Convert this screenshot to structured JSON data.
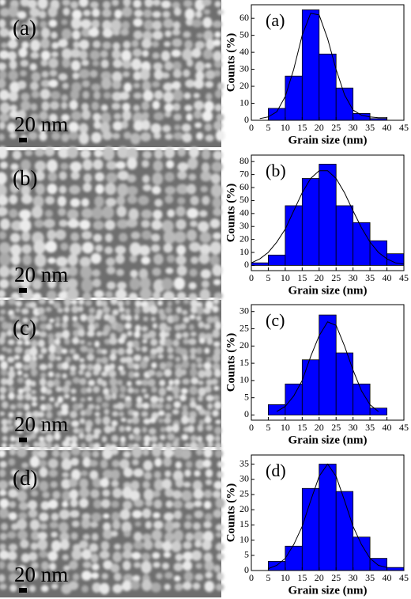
{
  "images": [
    {
      "label": "(a)",
      "scale": "20 nm"
    },
    {
      "label": "(b)",
      "scale": "20 nm"
    },
    {
      "label": "(c)",
      "scale": "20 nm"
    },
    {
      "label": "(d)",
      "scale": "20 nm"
    }
  ],
  "chart_data": [
    {
      "type": "histogram",
      "panel_label": "(a)",
      "x_label": "Grain size (nm)",
      "y_label": "Counts (%)",
      "color": "#0000ff",
      "bins": [
        5,
        10,
        15,
        20,
        25,
        30,
        35,
        40
      ],
      "counts": [
        7,
        26,
        65,
        39,
        19,
        4,
        1
      ],
      "fit": {
        "x": [
          2.5,
          5,
          7.5,
          10,
          12.5,
          15,
          17.5,
          20,
          22.5,
          25,
          27.5,
          30,
          32.5,
          35,
          37.5,
          40
        ],
        "values": [
          1,
          2,
          5,
          14,
          30,
          50,
          63,
          62,
          48,
          30,
          15,
          6,
          3,
          2,
          1.5,
          1.5
        ]
      },
      "xlim": [
        0,
        45
      ],
      "xticks": [
        0,
        5,
        10,
        15,
        20,
        25,
        30,
        35,
        40,
        45
      ],
      "ylim": [
        0,
        68
      ],
      "yticks": [
        0,
        10,
        20,
        30,
        40,
        50,
        60
      ]
    },
    {
      "type": "histogram",
      "panel_label": "(b)",
      "x_label": "Grain size (nm)",
      "y_label": "Counts (%)",
      "color": "#0000ff",
      "bins": [
        0,
        5,
        10,
        15,
        20,
        25,
        30,
        35,
        40,
        45
      ],
      "counts": [
        2,
        8,
        46,
        67,
        78,
        46,
        33,
        19,
        9
      ],
      "fit": {
        "x": [
          0,
          2.5,
          5,
          7.5,
          10,
          12.5,
          15,
          17.5,
          20,
          22.5,
          25,
          27.5,
          30,
          32.5,
          35,
          37.5,
          40,
          42.5,
          45
        ],
        "values": [
          2,
          5,
          10,
          18,
          28,
          42,
          56,
          67,
          73,
          73,
          67,
          56,
          42,
          29,
          18,
          10,
          5,
          2,
          1
        ]
      },
      "xlim": [
        0,
        45
      ],
      "xticks": [
        0,
        5,
        10,
        15,
        20,
        25,
        30,
        35,
        40,
        45
      ],
      "ylim": [
        -4,
        85
      ],
      "yticks": [
        0,
        10,
        20,
        30,
        40,
        50,
        60,
        70,
        80
      ]
    },
    {
      "type": "histogram",
      "panel_label": "(c)",
      "x_label": "Grain size (nm)",
      "y_label": "Counts (%)",
      "color": "#0000ff",
      "bins": [
        5,
        10,
        15,
        20,
        25,
        30,
        35,
        40
      ],
      "counts": [
        3,
        9,
        16,
        29,
        18,
        9,
        2
      ],
      "fit": {
        "x": [
          7.5,
          10,
          12.5,
          15,
          17.5,
          20,
          22.5,
          25,
          27.5,
          30,
          32.5,
          35,
          37.5
        ],
        "values": [
          1,
          2.5,
          5.5,
          10,
          17,
          23,
          27,
          26,
          20,
          13,
          7,
          3,
          1
        ]
      },
      "xlim": [
        0,
        45
      ],
      "xticks": [
        0,
        5,
        10,
        15,
        20,
        25,
        30,
        35,
        40,
        45
      ],
      "ylim": [
        -1.5,
        32
      ],
      "yticks": [
        0,
        5,
        10,
        15,
        20,
        25,
        30
      ]
    },
    {
      "type": "histogram",
      "panel_label": "(d)",
      "x_label": "Grain size (nm)",
      "y_label": "Counts (%)",
      "color": "#0000ff",
      "bins": [
        5,
        10,
        15,
        20,
        25,
        30,
        35,
        40,
        45
      ],
      "counts": [
        3,
        8,
        27,
        35,
        26,
        11,
        4,
        1
      ],
      "fit": {
        "x": [
          5,
          7.5,
          10,
          12.5,
          15,
          17.5,
          20,
          22.5,
          25,
          27.5,
          30,
          32.5,
          35,
          37.5,
          40
        ],
        "values": [
          0.6,
          1.7,
          4,
          8.5,
          14.5,
          23,
          31,
          35,
          31,
          23,
          14.5,
          8.5,
          4,
          1.7,
          1
        ]
      },
      "xlim": [
        0,
        45
      ],
      "xticks": [
        0,
        5,
        10,
        15,
        20,
        25,
        30,
        35,
        40,
        45
      ],
      "ylim": [
        0,
        38
      ],
      "yticks": [
        0,
        5,
        10,
        15,
        20,
        25,
        30,
        35
      ]
    }
  ]
}
